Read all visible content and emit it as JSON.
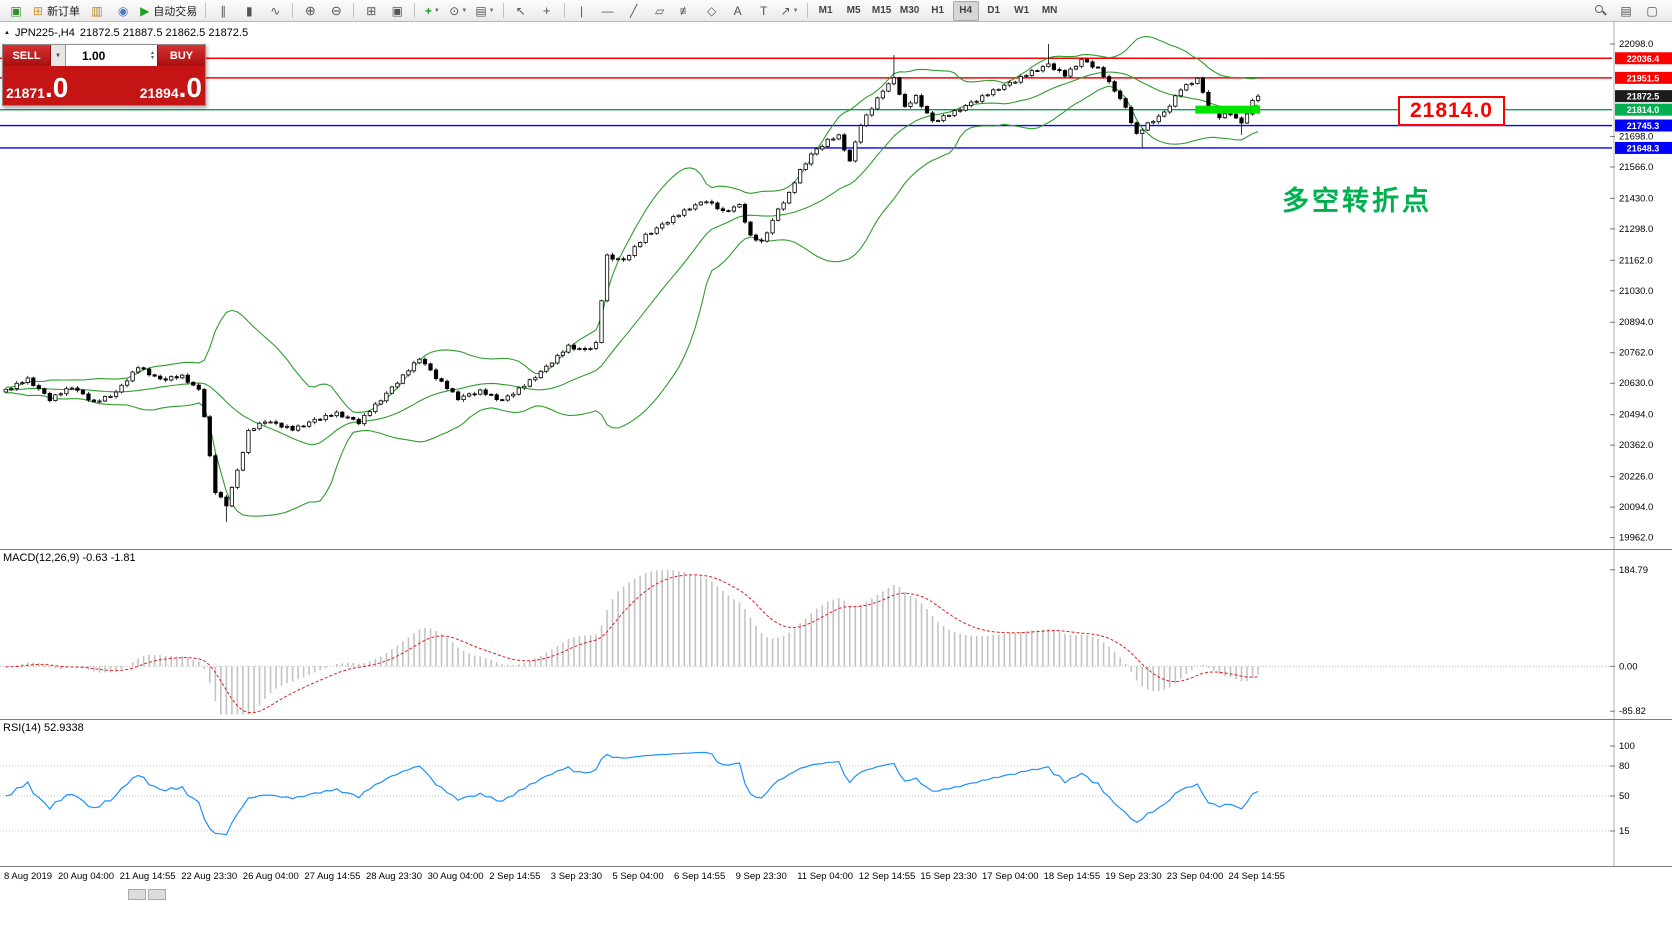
{
  "toolbar": {
    "groups": [
      [
        {
          "name": "app-button",
          "icon": "app-icon",
          "glyph": "▣",
          "color": "#2d8f2d"
        },
        {
          "name": "new-order-button",
          "icon": "new-order-icon",
          "glyph": "⊞",
          "color": "#d78f1e",
          "label": "新订单"
        },
        {
          "name": "new-chart-button",
          "icon": "new-chart-icon",
          "glyph": "▥",
          "color": "#b8860b"
        },
        {
          "name": "profiles-button",
          "icon": "profiles-icon",
          "glyph": "◉",
          "color": "#4a7ebb"
        },
        {
          "name": "autotrading-button",
          "icon": "autotrading-icon",
          "glyph": "▶",
          "color": "#1fa11f",
          "label": "自动交易"
        }
      ],
      [
        {
          "name": "bar-chart-button",
          "icon": "bar-chart-icon",
          "glyph": "∥"
        },
        {
          "name": "candlestick-chart-button",
          "icon": "candlestick-chart-icon",
          "glyph": "▮"
        },
        {
          "name": "line-chart-button",
          "icon": "line-chart-icon",
          "glyph": "∿"
        }
      ],
      [
        {
          "name": "zoom-in-button",
          "icon": "zoom-in-icon",
          "glyph": "⊕",
          "size": 13
        },
        {
          "name": "zoom-out-button",
          "icon": "zoom-out-icon",
          "glyph": "⊖",
          "size": 13
        }
      ],
      [
        {
          "name": "tile-windows-button",
          "icon": "tile-windows-icon",
          "glyph": "⊞"
        },
        {
          "name": "cascade-windows-button",
          "icon": "cascade-windows-icon",
          "glyph": "▣"
        }
      ],
      [
        {
          "name": "indicators-button",
          "icon": "indicators-icon",
          "glyph": "+",
          "color": "#1fa11f",
          "bold": true,
          "caret": true
        },
        {
          "name": "periods-button",
          "icon": "periods-icon",
          "glyph": "⊙",
          "caret": true
        },
        {
          "name": "templates-button",
          "icon": "templates-icon",
          "glyph": "▤",
          "caret": true
        }
      ],
      [
        {
          "name": "cursor-button",
          "icon": "cursor-icon",
          "glyph": "↖"
        },
        {
          "name": "crosshair-button",
          "icon": "crosshair-icon",
          "glyph": "+",
          "size": 13
        }
      ],
      [
        {
          "name": "vertical-line-button",
          "icon": "vertical-line-icon",
          "glyph": "|"
        },
        {
          "name": "horizontal-line-button",
          "icon": "horizontal-line-icon",
          "glyph": "—"
        },
        {
          "name": "trendline-button",
          "icon": "trendline-icon",
          "glyph": "╱"
        },
        {
          "name": "channel-button",
          "icon": "channel-icon",
          "glyph": "▱"
        },
        {
          "name": "fibonacci-button",
          "icon": "fibonacci-icon",
          "glyph": "≢"
        },
        {
          "name": "shapes-button",
          "icon": "shapes-icon",
          "glyph": "◇"
        },
        {
          "name": "text-button",
          "icon": "text-icon",
          "glyph": "A"
        },
        {
          "name": "label-button",
          "icon": "label-icon",
          "glyph": "T"
        },
        {
          "name": "arrows-button",
          "icon": "arrows-icon",
          "glyph": "↗",
          "caret": true
        }
      ]
    ],
    "timeframes": [
      "M1",
      "M5",
      "M15",
      "M30",
      "H1",
      "H4",
      "D1",
      "W1",
      "MN"
    ],
    "active_timeframe": "H4",
    "right": [
      {
        "name": "search-button",
        "mag": true
      },
      {
        "name": "window-list-button",
        "icon": "window-list-icon",
        "glyph": "▤"
      },
      {
        "name": "fullscreen-button",
        "icon": "fullscreen-icon",
        "glyph": "▢"
      }
    ]
  },
  "one_click": {
    "sell_label": "SELL",
    "buy_label": "BUY",
    "volume": "1.00",
    "sell_price": "21871",
    "sell_price_frac": ".0",
    "buy_price": "21894",
    "buy_price_frac": ".0"
  },
  "symbol_header": {
    "symbol": "JPN225-,H4",
    "ohlc": "21872.5 21887.5 21862.5 21872.5"
  },
  "macd": {
    "header": "MACD(12,26,9) -0.63 -1.81",
    "scale_to": 184.79,
    "histogram_color": "#c3c3c3",
    "signal_color": "#e02020",
    "axis_labels": [
      {
        "text": "184.79",
        "value": 184.79
      },
      {
        "text": "0.00",
        "value": 0
      },
      {
        "text": "-85.82",
        "value": -85.82
      }
    ]
  },
  "rsi": {
    "header": "RSI(14) 52.9338",
    "line_color": "#1e90ff",
    "levels": [
      80,
      50,
      15
    ],
    "axis_labels": [
      {
        "text": "100",
        "value": 100
      },
      {
        "text": "80",
        "value": 80
      },
      {
        "text": "50",
        "value": 50
      },
      {
        "text": "15",
        "value": 15
      }
    ]
  },
  "annotations": {
    "price_callout": "21814.0",
    "price_callout_color": "#ff0000",
    "turning_point": "多空转折点",
    "turning_point_color": "#00b050"
  },
  "time_axis": [
    "8 Aug 2019",
    "20 Aug 04:00",
    "21 Aug 14:55",
    "22 Aug 23:30",
    "26 Aug 04:00",
    "27 Aug 14:55",
    "28 Aug 23:30",
    "30 Aug 04:00",
    "2 Sep 14:55",
    "3 Sep 23:30",
    "5 Sep 04:00",
    "6 Sep 14:55",
    "9 Sep 23:30",
    "11 Sep 04:00",
    "12 Sep 14:55",
    "15 Sep 23:30",
    "17 Sep 04:00",
    "18 Sep 14:55",
    "19 Sep 23:30",
    "23 Sep 04:00",
    "24 Sep 14:55"
  ],
  "chart_data": {
    "type": "candlestick",
    "symbol": "JPN225-",
    "timeframe": "H4",
    "ohlc": {
      "open": "21872.5",
      "high": "21887.5",
      "low": "21862.5",
      "close": "21872.5"
    },
    "y_range": [
      19930,
      22176
    ],
    "y_axis_labels": [
      "22098.0",
      "21698.0",
      "21566.0",
      "21430.0",
      "21298.0",
      "21162.0",
      "21030.0",
      "20894.0",
      "20762.0",
      "20630.0",
      "20494.0",
      "20362.0",
      "20226.0",
      "20094.0",
      "19962.0"
    ],
    "levels": [
      {
        "price": 22036.4,
        "label": "22036.4",
        "line": "#ff0000",
        "tag": "#ff0000"
      },
      {
        "price": 21951.5,
        "label": "21951.5",
        "line": "#ff0000",
        "tag": "#ff0000"
      },
      {
        "price": 21872.5,
        "label": "21872.5",
        "line": null,
        "tag": "#1c1c1c"
      },
      {
        "price": 21814.0,
        "label": "21814.0",
        "line": "#00a651",
        "tag": "#00b050"
      },
      {
        "price": 21745.3,
        "label": "21745.3",
        "line": "#0000ff",
        "tag": "#0000ff"
      },
      {
        "price": 21648.3,
        "label": "21648.3",
        "line": "#0000ff",
        "tag": "#0000ff"
      }
    ],
    "highlight": {
      "price": 21814.0,
      "x_from": 216,
      "x_to": 227,
      "color": "#00e400"
    },
    "bollinger_color": "#2e9e2e",
    "candle_up": "#ffffff",
    "candle_down": "#000000",
    "candle_outline": "#000000",
    "candles": {
      "count": 228,
      "wiggle_base": 6,
      "osc": [
        4,
        -5,
        6,
        -3,
        5,
        -6,
        2
      ],
      "close_path": [
        [
          0,
          20600
        ],
        [
          4,
          20648
        ],
        [
          8,
          20560
        ],
        [
          12,
          20615
        ],
        [
          16,
          20545
        ],
        [
          20,
          20590
        ],
        [
          24,
          20700
        ],
        [
          28,
          20645
        ],
        [
          32,
          20660
        ],
        [
          35,
          20600
        ],
        [
          36,
          20490
        ],
        [
          37,
          20310
        ],
        [
          38,
          20160
        ],
        [
          40,
          20105
        ],
        [
          42,
          20250
        ],
        [
          44,
          20420
        ],
        [
          47,
          20468
        ],
        [
          52,
          20430
        ],
        [
          56,
          20470
        ],
        [
          60,
          20500
        ],
        [
          64,
          20460
        ],
        [
          68,
          20560
        ],
        [
          72,
          20660
        ],
        [
          75,
          20740
        ],
        [
          78,
          20655
        ],
        [
          82,
          20565
        ],
        [
          86,
          20595
        ],
        [
          90,
          20555
        ],
        [
          94,
          20620
        ],
        [
          98,
          20700
        ],
        [
          102,
          20790
        ],
        [
          105,
          20772
        ],
        [
          107,
          20800
        ],
        [
          109,
          21180
        ],
        [
          112,
          21160
        ],
        [
          116,
          21270
        ],
        [
          120,
          21330
        ],
        [
          124,
          21390
        ],
        [
          127,
          21420
        ],
        [
          130,
          21372
        ],
        [
          133,
          21400
        ],
        [
          135,
          21265
        ],
        [
          137,
          21240
        ],
        [
          140,
          21380
        ],
        [
          142,
          21450
        ],
        [
          144,
          21550
        ],
        [
          146,
          21620
        ],
        [
          149,
          21680
        ],
        [
          151,
          21700
        ],
        [
          153,
          21590
        ],
        [
          155,
          21750
        ],
        [
          157,
          21820
        ],
        [
          159,
          21900
        ],
        [
          161,
          21948
        ],
        [
          163,
          21822
        ],
        [
          165,
          21870
        ],
        [
          168,
          21762
        ],
        [
          171,
          21792
        ],
        [
          174,
          21830
        ],
        [
          177,
          21868
        ],
        [
          180,
          21908
        ],
        [
          183,
          21938
        ],
        [
          186,
          21978
        ],
        [
          189,
          22008
        ],
        [
          192,
          21962
        ],
        [
          195,
          22030
        ],
        [
          198,
          21990
        ],
        [
          201,
          21900
        ],
        [
          203,
          21820
        ],
        [
          205,
          21705
        ],
        [
          207,
          21752
        ],
        [
          210,
          21800
        ],
        [
          213,
          21902
        ],
        [
          216,
          21948
        ],
        [
          218,
          21822
        ],
        [
          220,
          21782
        ],
        [
          222,
          21800
        ],
        [
          224,
          21752
        ],
        [
          226,
          21848
        ],
        [
          227,
          21872.5
        ]
      ],
      "spikes": [
        {
          "i": 189,
          "high": 22098
        },
        {
          "i": 161,
          "high": 22050
        },
        {
          "i": 40,
          "low": 20030
        },
        {
          "i": 206,
          "low": 21650
        },
        {
          "i": 224,
          "low": 21705
        }
      ]
    }
  }
}
